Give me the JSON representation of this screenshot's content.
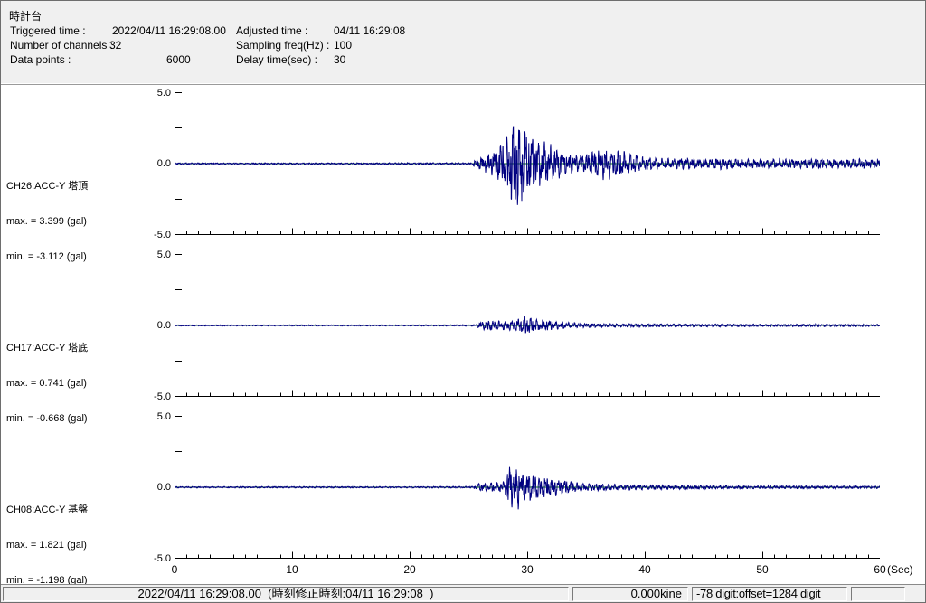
{
  "header": {
    "title": "時計台",
    "fields": [
      {
        "label": "Triggered time :",
        "value": "2022/04/11 16:29:08.00"
      },
      {
        "label": "Adjusted time :",
        "value": "04/11 16:29:08"
      },
      {
        "label": "Number of channels :",
        "value": "32"
      },
      {
        "label": "Sampling freq(Hz) :",
        "value": "100"
      },
      {
        "label": "Data points :",
        "value": "6000"
      },
      {
        "label": "Delay time(sec) :",
        "value": "30"
      }
    ]
  },
  "status_bar": {
    "timestamp": "2022/04/11 16:29:08.00  (時刻修正時刻:04/11 16:29:08  )",
    "kine": "0.000kine",
    "digit": "-78 digit:offset=1284 digit"
  },
  "chart_data": {
    "type": "line",
    "xlabel": "(Sec)",
    "x_range_sec": [
      0,
      60
    ],
    "x_major_ticks": [
      0,
      10,
      20,
      30,
      40,
      50,
      60
    ],
    "x_minor_tick_interval_sec": 1,
    "y_range_gal": [
      -5.0,
      5.0
    ],
    "y_tick_labels": [
      "5.0",
      "0.0",
      "-5.0"
    ],
    "legend": "none",
    "grid": "zero-line-only",
    "zero_line_color": "#008000",
    "trace_color": "#000080",
    "series": [
      {
        "name": "CH26:ACC-Y 塔頂",
        "max_label": "max. = 3.399 (gal)",
        "min_label": "min. = -3.112 (gal)",
        "max_gal": 3.399,
        "min_gal": -3.112,
        "seed": 26,
        "envelope_gal_vs_sec": [
          [
            0,
            0.05
          ],
          [
            10,
            0.05
          ],
          [
            20,
            0.06
          ],
          [
            25.3,
            0.06
          ],
          [
            25.8,
            0.35
          ],
          [
            26.5,
            0.6
          ],
          [
            27.2,
            0.9
          ],
          [
            28,
            1.5
          ],
          [
            28.6,
            2.4
          ],
          [
            29.0,
            3.35
          ],
          [
            29.4,
            2.9
          ],
          [
            29.8,
            2.4
          ],
          [
            30.4,
            1.9
          ],
          [
            31,
            1.55
          ],
          [
            32,
            1.25
          ],
          [
            33,
            0.85
          ],
          [
            34,
            0.55
          ],
          [
            34.8,
            0.65
          ],
          [
            35.5,
            0.85
          ],
          [
            36.3,
            1.0
          ],
          [
            37,
            1.05
          ],
          [
            37.8,
            0.9
          ],
          [
            38.6,
            0.7
          ],
          [
            39.5,
            0.55
          ],
          [
            40.5,
            0.42
          ],
          [
            42,
            0.32
          ],
          [
            43.5,
            0.42
          ],
          [
            45,
            0.3
          ],
          [
            46.5,
            0.38
          ],
          [
            48,
            0.32
          ],
          [
            50,
            0.28
          ],
          [
            51.5,
            0.35
          ],
          [
            53,
            0.3
          ],
          [
            55,
            0.33
          ],
          [
            57,
            0.28
          ],
          [
            58.5,
            0.32
          ],
          [
            60,
            0.27
          ]
        ]
      },
      {
        "name": "CH17:ACC-Y 塔底",
        "max_label": "max. = 0.741 (gal)",
        "min_label": "min. = -0.668 (gal)",
        "max_gal": 0.741,
        "min_gal": -0.668,
        "seed": 17,
        "envelope_gal_vs_sec": [
          [
            0,
            0.04
          ],
          [
            20,
            0.04
          ],
          [
            25.6,
            0.05
          ],
          [
            26.1,
            0.28
          ],
          [
            26.8,
            0.33
          ],
          [
            27.5,
            0.3
          ],
          [
            28.2,
            0.33
          ],
          [
            28.9,
            0.38
          ],
          [
            29.5,
            0.45
          ],
          [
            29.9,
            0.72
          ],
          [
            30.3,
            0.5
          ],
          [
            31,
            0.42
          ],
          [
            31.8,
            0.35
          ],
          [
            32.6,
            0.27
          ],
          [
            33.5,
            0.2
          ],
          [
            34.5,
            0.15
          ],
          [
            36,
            0.13
          ],
          [
            38,
            0.11
          ],
          [
            40,
            0.1
          ],
          [
            43,
            0.09
          ],
          [
            46,
            0.09
          ],
          [
            50,
            0.08
          ],
          [
            55,
            0.08
          ],
          [
            60,
            0.07
          ]
        ]
      },
      {
        "name": "CH08:ACC-Y 基盤",
        "max_label": "max. = 1.821 (gal)",
        "min_label": "min. = -1.198 (gal)",
        "max_gal": 1.821,
        "min_gal": -1.198,
        "seed": 8,
        "envelope_gal_vs_sec": [
          [
            0,
            0.05
          ],
          [
            20,
            0.05
          ],
          [
            25.4,
            0.06
          ],
          [
            25.9,
            0.28
          ],
          [
            26.6,
            0.3
          ],
          [
            27.4,
            0.33
          ],
          [
            28.1,
            0.4
          ],
          [
            28.55,
            1.8
          ],
          [
            28.9,
            1.1
          ],
          [
            29.2,
            1.55
          ],
          [
            29.6,
            1.0
          ],
          [
            30.1,
            0.95
          ],
          [
            30.7,
            0.85
          ],
          [
            31.4,
            0.75
          ],
          [
            32.2,
            0.6
          ],
          [
            33,
            0.5
          ],
          [
            34,
            0.35
          ],
          [
            35,
            0.27
          ],
          [
            36.5,
            0.22
          ],
          [
            38,
            0.18
          ],
          [
            40,
            0.15
          ],
          [
            43,
            0.13
          ],
          [
            46,
            0.11
          ],
          [
            50,
            0.1
          ],
          [
            55,
            0.09
          ],
          [
            60,
            0.08
          ]
        ]
      }
    ]
  }
}
